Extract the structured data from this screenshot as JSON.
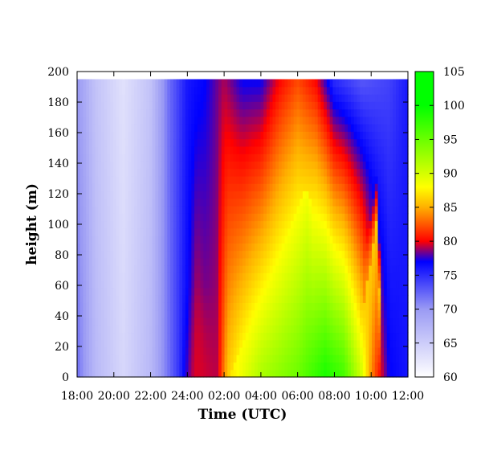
{
  "chart_data": {
    "type": "heatmap",
    "title": "",
    "xlabel": "Time (UTC)",
    "ylabel": "height (m)",
    "x_range_hours": [
      0,
      18
    ],
    "x_ticks": [
      {
        "h": 0,
        "label": "18:00"
      },
      {
        "h": 2,
        "label": "20:00"
      },
      {
        "h": 4,
        "label": "22:00"
      },
      {
        "h": 6,
        "label": "24:00"
      },
      {
        "h": 8,
        "label": "02:00"
      },
      {
        "h": 10,
        "label": "04:00"
      },
      {
        "h": 12,
        "label": "06:00"
      },
      {
        "h": 14,
        "label": "08:00"
      },
      {
        "h": 16,
        "label": "10:00"
      },
      {
        "h": 18,
        "label": "12:00"
      }
    ],
    "ylim": [
      0,
      200
    ],
    "y_ticks": [
      0,
      20,
      40,
      60,
      80,
      100,
      120,
      140,
      160,
      180,
      200
    ],
    "data_top_height": 195,
    "colorbar": {
      "range": [
        60,
        105
      ],
      "ticks": [
        60,
        65,
        70,
        75,
        80,
        85,
        90,
        95,
        100,
        105
      ],
      "stops": [
        {
          "v": 60,
          "color": "#ffffff"
        },
        {
          "v": 70,
          "color": "#9a9af4"
        },
        {
          "v": 77,
          "color": "#0000ff"
        },
        {
          "v": 80,
          "color": "#ff0000"
        },
        {
          "v": 85,
          "color": "#ffb000"
        },
        {
          "v": 88,
          "color": "#ffff00"
        },
        {
          "v": 100,
          "color": "#00ff00"
        },
        {
          "v": 105,
          "color": "#00ff00"
        }
      ]
    },
    "field": {
      "description": "values in colorbar units (RH %) sampled at times (hours after 18:00) for surface and top of domain",
      "surface": [
        {
          "h": 0,
          "v": 72
        },
        {
          "h": 1,
          "v": 67
        },
        {
          "h": 2.5,
          "v": 64
        },
        {
          "h": 4,
          "v": 67
        },
        {
          "h": 5,
          "v": 72
        },
        {
          "h": 6,
          "v": 77
        },
        {
          "h": 6.5,
          "v": 80
        },
        {
          "h": 7,
          "v": 79
        },
        {
          "h": 7.6,
          "v": 79
        },
        {
          "h": 8.2,
          "v": 86
        },
        {
          "h": 9,
          "v": 89
        },
        {
          "h": 10,
          "v": 92
        },
        {
          "h": 12,
          "v": 95
        },
        {
          "h": 13.5,
          "v": 99
        },
        {
          "h": 14.5,
          "v": 97
        },
        {
          "h": 15.5,
          "v": 90
        },
        {
          "h": 16,
          "v": 84
        },
        {
          "h": 16.5,
          "v": 80
        },
        {
          "h": 17,
          "v": 77
        },
        {
          "h": 18,
          "v": 76
        }
      ],
      "top": [
        {
          "h": 0,
          "v": 70
        },
        {
          "h": 1,
          "v": 66
        },
        {
          "h": 2.5,
          "v": 63
        },
        {
          "h": 4,
          "v": 66
        },
        {
          "h": 5,
          "v": 72
        },
        {
          "h": 6,
          "v": 76
        },
        {
          "h": 7,
          "v": 77
        },
        {
          "h": 8,
          "v": 79
        },
        {
          "h": 9,
          "v": 77
        },
        {
          "h": 10,
          "v": 77
        },
        {
          "h": 11,
          "v": 80
        },
        {
          "h": 12,
          "v": 82
        },
        {
          "h": 13,
          "v": 80
        },
        {
          "h": 14,
          "v": 75
        },
        {
          "h": 15.5,
          "v": 73
        },
        {
          "h": 17,
          "v": 74
        },
        {
          "h": 18,
          "v": 76
        }
      ],
      "humid_wedges": [
        {
          "start_h": 7.8,
          "base_left_h": 8.2,
          "peak_h": 12.5,
          "peak_height": 125,
          "base_right_h": 15.0,
          "peak_v": 88
        },
        {
          "start_h": 14.8,
          "base_left_h": 15.0,
          "peak_h": 16.4,
          "peak_height": 110,
          "base_right_h": 16.5,
          "peak_v": 86
        }
      ]
    }
  }
}
